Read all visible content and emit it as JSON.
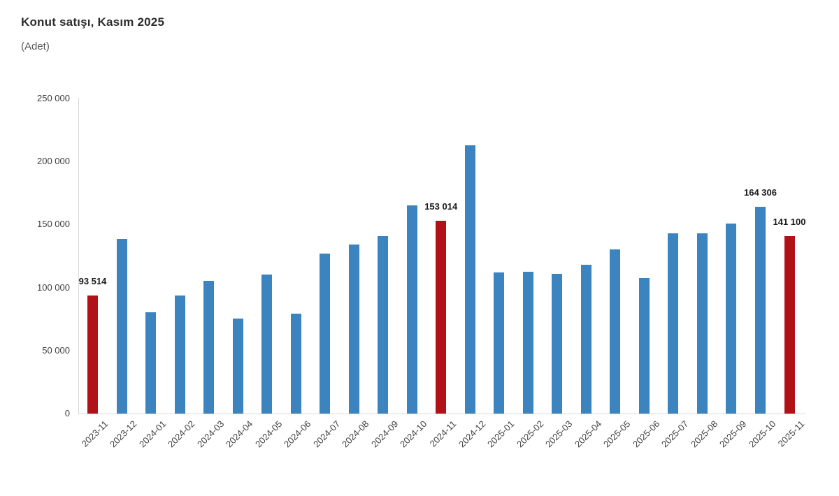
{
  "header": {
    "title": "Konut satışı, Kasım 2025",
    "subtitle": "(Adet)"
  },
  "chart_data": {
    "type": "bar",
    "title": "Konut satışı, Kasım 2025",
    "unit_label": "(Adet)",
    "categories": [
      "2023-11",
      "2023-12",
      "2024-01",
      "2024-02",
      "2024-03",
      "2024-04",
      "2024-05",
      "2024-06",
      "2024-07",
      "2024-08",
      "2024-09",
      "2024-10",
      "2024-11",
      "2024-12",
      "2025-01",
      "2025-02",
      "2025-03",
      "2025-04",
      "2025-05",
      "2025-06",
      "2025-07",
      "2025-08",
      "2025-09",
      "2025-10",
      "2025-11"
    ],
    "values": [
      93514,
      138577,
      80308,
      93902,
      105476,
      75569,
      110588,
      79313,
      127088,
      134155,
      140919,
      165138,
      153014,
      212637,
      112173,
      112818,
      110795,
      118359,
      130025,
      107723,
      142858,
      143319,
      150738,
      164306,
      141100
    ],
    "highlighted_indices": [
      0,
      12,
      24
    ],
    "value_labels": {
      "0": "93 514",
      "12": "153 014",
      "23": "164 306",
      "24": "141 100"
    },
    "colors": {
      "bar_default": "#3b84bf",
      "bar_highlight": "#b11218",
      "axis": "#d9d9d9",
      "tick_text": "#404040",
      "value_text": "#1a1a1a"
    },
    "y_axis": {
      "tick_values": [
        0,
        50000,
        100000,
        150000,
        200000,
        250000
      ],
      "tick_labels": [
        "0",
        "50 000",
        "100 000",
        "150 000",
        "200 000",
        "250 000"
      ],
      "min": 0,
      "max": 250000
    },
    "xlabel": "",
    "ylabel": "",
    "grid": "off",
    "legend": "none"
  }
}
